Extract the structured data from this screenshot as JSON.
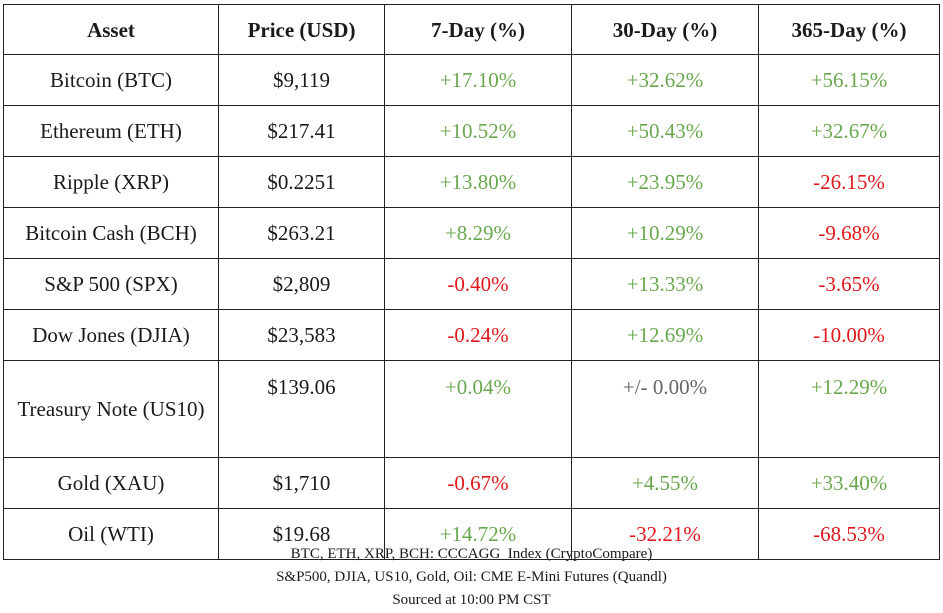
{
  "table": {
    "headers": [
      "Asset",
      "Price (USD)",
      "7-Day (%)",
      "30-Day (%)",
      "365-Day (%)"
    ],
    "rows": [
      {
        "asset": "Bitcoin (BTC)",
        "price": "$9,119",
        "d7": "+17.10%",
        "d30": "+32.62%",
        "d365": "+56.15%"
      },
      {
        "asset": "Ethereum (ETH)",
        "price": "$217.41",
        "d7": "+10.52%",
        "d30": "+50.43%",
        "d365": "+32.67%"
      },
      {
        "asset": "Ripple (XRP)",
        "price": "$0.2251",
        "d7": "+13.80%",
        "d30": "+23.95%",
        "d365": "-26.15%"
      },
      {
        "asset": "Bitcoin Cash (BCH)",
        "price": "$263.21",
        "d7": "+8.29%",
        "d30": "+10.29%",
        "d365": "-9.68%"
      },
      {
        "asset": "S&P 500 (SPX)",
        "price": "$2,809",
        "d7": "-0.40%",
        "d30": "+13.33%",
        "d365": "-3.65%"
      },
      {
        "asset": "Dow Jones (DJIA)",
        "price": "$23,583",
        "d7": "-0.24%",
        "d30": "+12.69%",
        "d365": "-10.00%"
      },
      {
        "asset": "Treasury Note (US10)",
        "price": "$139.06",
        "d7": "+0.04%",
        "d30": "+/- 0.00%",
        "d365": "+12.29%"
      },
      {
        "asset": "Gold (XAU)",
        "price": "$1,710",
        "d7": "-0.67%",
        "d30": "+4.55%",
        "d365": "+33.40%"
      },
      {
        "asset": "Oil (WTI)",
        "price": "$19.68",
        "d7": "+14.72%",
        "d30": "-32.21%",
        "d365": "-68.53%"
      }
    ]
  },
  "footer": {
    "line1": "BTC, ETH, XRP, BCH: CCCAGG  Index (CryptoCompare)",
    "line2": "S&P500, DJIA, US10, Gold, Oil: CME E-Mini Futures (Quandl)",
    "line3": "Sourced at 10:00 PM CST"
  },
  "colors": {
    "positive": "#6aa84f",
    "negative": "#e0181b",
    "flat": "#666666"
  }
}
